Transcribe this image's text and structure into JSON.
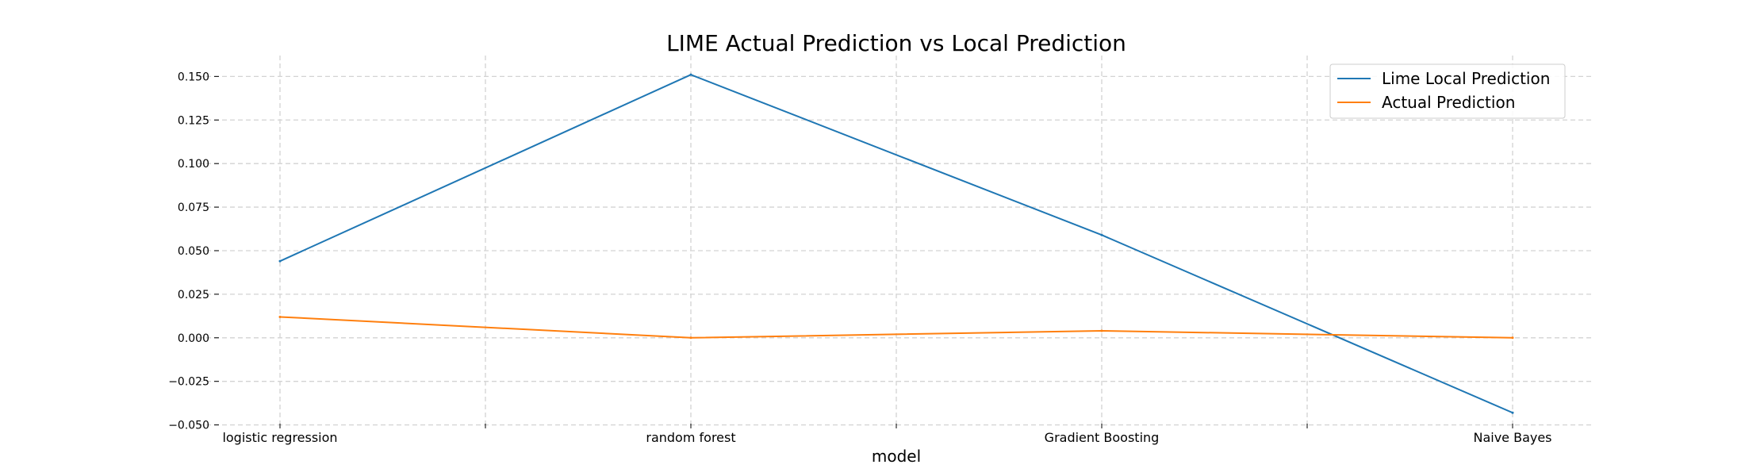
{
  "chart_data": {
    "type": "line",
    "title": "LIME Actual Prediction vs Local Prediction",
    "xlabel": "model",
    "ylabel": "",
    "categories": [
      "logistic regression",
      "random forest",
      "Gradient Boosting",
      "Naive Bayes"
    ],
    "x_tick_labels": [
      "logistic regression",
      "",
      "random forest",
      "",
      "Gradient Boosting",
      "",
      "Naive Bayes"
    ],
    "ylim": [
      -0.052,
      0.162
    ],
    "y_ticks": [
      -0.05,
      -0.025,
      0.0,
      0.025,
      0.05,
      0.075,
      0.1,
      0.125,
      0.15
    ],
    "y_tick_labels": [
      "−0.050",
      "−0.025",
      "0.000",
      "0.025",
      "0.050",
      "0.075",
      "0.100",
      "0.125",
      "0.150"
    ],
    "grid": true,
    "legend_position": "top-right",
    "series": [
      {
        "name": "Lime Local Prediction",
        "color": "#1f77b4",
        "values": [
          0.044,
          0.151,
          0.059,
          -0.043
        ]
      },
      {
        "name": "Actual Prediction",
        "color": "#ff7f0e",
        "values": [
          0.012,
          0.0,
          0.004,
          0.0
        ]
      }
    ]
  }
}
